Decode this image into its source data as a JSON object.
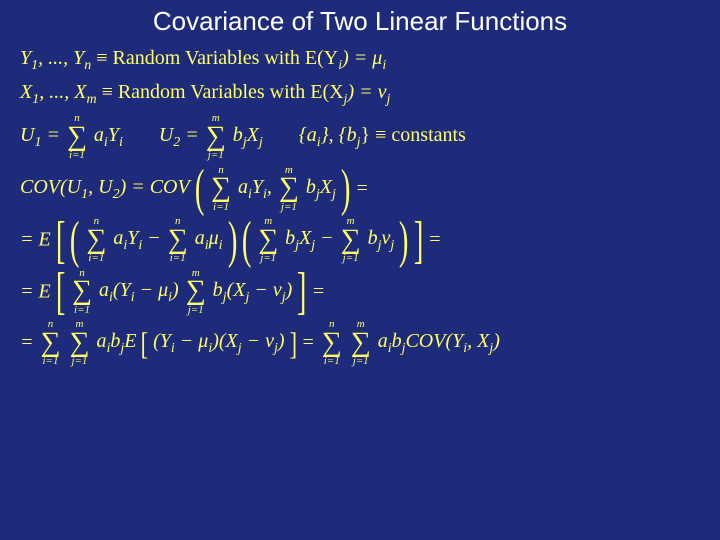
{
  "background_color": "#1e2a7a",
  "text_color": "#ffff66",
  "title_color": "#ffffff",
  "title_font_family": "Arial",
  "title_fontsize": 26,
  "math_font_family": "Times New Roman",
  "math_fontsize": 20,
  "title": "Covariance of Two Linear Functions",
  "lines": {
    "l1a": "Y",
    "l1b": ", ..., Y",
    "l1c": " ≡ Random Variables with  E(Y",
    "l1d": ") = μ",
    "l2a": "X",
    "l2b": ", ..., X",
    "l2c": " ≡ Random Variables with  E(X",
    "l2d": ") = ν",
    "l3a": "U",
    "l3b": " = ",
    "l3c": " a",
    "l3d": "Y",
    "l3e": "U",
    "l3f": " = ",
    "l3g": " b",
    "l3h": "X",
    "l3i": "{a",
    "l3j": "}, {b",
    "l3k": "} ≡ constants",
    "l4a": "COV(U",
    "l4b": ", U",
    "l4c": ") = COV",
    "l4d": " a",
    "l4e": "Y",
    "l4f": ", ",
    "l4g": " b",
    "l4h": "X",
    "l4i": " =",
    "l5a": "= E",
    "l5b": " a",
    "l5c": "Y",
    "l5d": " − ",
    "l5e": " a",
    "l5f": "μ",
    "l5g": " b",
    "l5h": "X",
    "l5i": " − ",
    "l5j": " b",
    "l5k": "ν",
    "l5l": " =",
    "l6a": "= E",
    "l6b": " a",
    "l6c": "(Y",
    "l6d": " − μ",
    "l6e": ")",
    "l6f": " b",
    "l6g": "(X",
    "l6h": " − ν",
    "l6i": ")",
    "l6j": " =",
    "l7a": "= ",
    "l7b": " a",
    "l7c": "b",
    "l7d": "E",
    "l7e": "(Y",
    "l7f": " − μ",
    "l7g": ")(X",
    "l7h": " − ν",
    "l7i": ")",
    "l7j": " = ",
    "l7k": " a",
    "l7l": "b",
    "l7m": "COV(Y",
    "l7n": ", X",
    "l7o": ")",
    "sub_1": "1",
    "sub_2": "2",
    "sub_n": "n",
    "sub_m": "m",
    "sub_i": "i",
    "sub_j": "j",
    "sum_n_top": "n",
    "sum_n_bot": "i=1",
    "sum_m_top": "m",
    "sum_m_bot": "j=1"
  }
}
